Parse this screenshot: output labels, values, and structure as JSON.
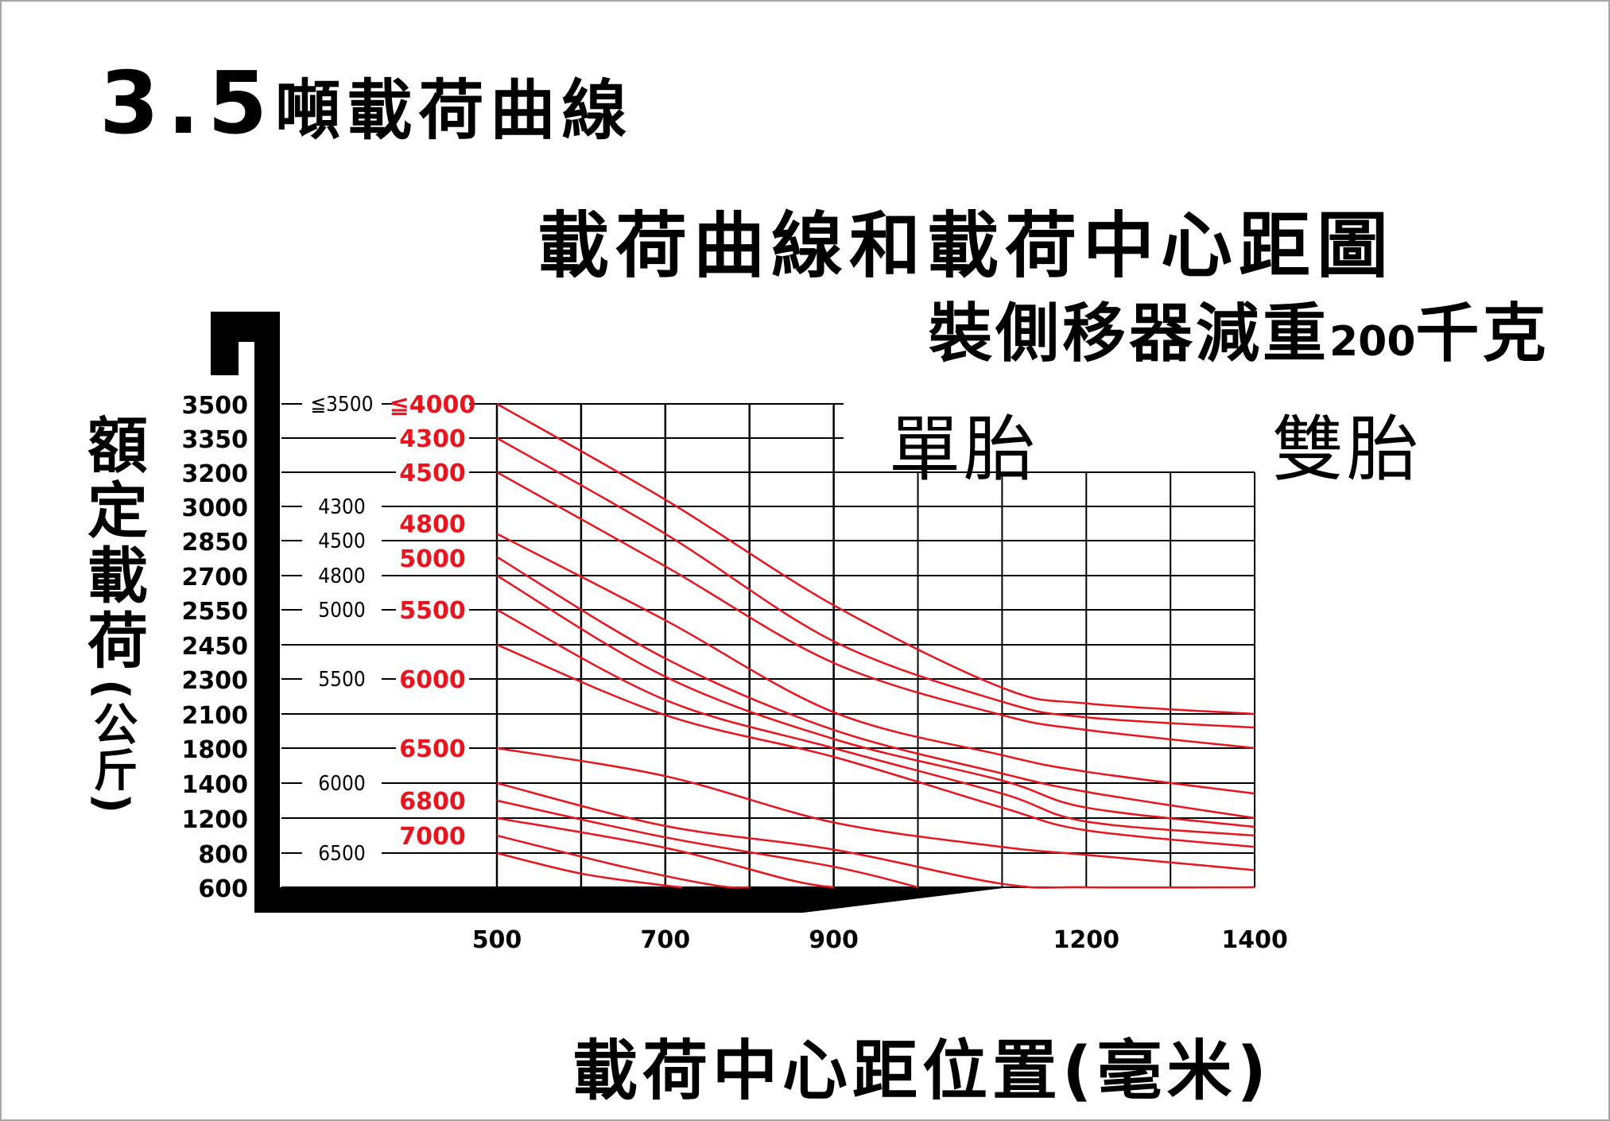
{
  "title": {
    "number": "3.5",
    "text": "噸載荷曲線"
  },
  "subtitle": "載荷曲線和載荷中心距圖",
  "note": {
    "prefix": "裝側移器減重",
    "number": "200",
    "suffix": "千克"
  },
  "tire_labels": {
    "single": "單胎",
    "dual": "雙胎"
  },
  "axis": {
    "ylabel_main": "額定載荷",
    "ylabel_unit": "(公斤)",
    "xlabel": "載荷中心距位置(毫米)"
  },
  "chart_data": {
    "type": "line",
    "title": "載荷曲線和載荷中心距圖",
    "xlabel": "載荷中心距位置(毫米)",
    "ylabel": "額定載荷(公斤)",
    "xlim": [
      500,
      1400
    ],
    "x_ticks": [
      "500",
      "700",
      "900",
      "1200",
      "1400"
    ],
    "y_ticks": [
      "3500",
      "3350",
      "3200",
      "3000",
      "2850",
      "2700",
      "2550",
      "2450",
      "2300",
      "2100",
      "1800",
      "1400",
      "1200",
      "800",
      "600"
    ],
    "single_tire_mast_labels": [
      {
        "label": "≦3500",
        "y_tick": "3500"
      },
      {
        "label": "4300",
        "y_tick": "3000"
      },
      {
        "label": "4500",
        "y_tick": "2850"
      },
      {
        "label": "4800",
        "y_tick": "2700"
      },
      {
        "label": "5000",
        "y_tick": "2550"
      },
      {
        "label": "5500",
        "y_tick": "2300"
      },
      {
        "label": "6000",
        "y_tick": "1400"
      },
      {
        "label": "6500",
        "y_tick": "800"
      }
    ],
    "dual_tire_mast_labels": [
      {
        "label": "≦4000",
        "y_tick": "3500"
      },
      {
        "label": "4300",
        "y_tick": "3350"
      },
      {
        "label": "4500",
        "y_tick": "3200"
      },
      {
        "label": "4800",
        "y_tick": "2925"
      },
      {
        "label": "5000",
        "y_tick": "2775"
      },
      {
        "label": "5500",
        "y_tick": "2550"
      },
      {
        "label": "6000",
        "y_tick": "2300"
      },
      {
        "label": "6500",
        "y_tick": "1800"
      },
      {
        "label": "6800",
        "y_tick": "1300"
      },
      {
        "label": "7000",
        "y_tick": "1000"
      }
    ],
    "series": [
      {
        "values": [
          [
            500,
            3500
          ],
          [
            700,
            3040
          ],
          [
            900,
            2570
          ],
          [
            1100,
            2250
          ],
          [
            1200,
            2160
          ],
          [
            1400,
            2100
          ]
        ]
      },
      {
        "values": [
          [
            500,
            3350
          ],
          [
            700,
            2880
          ],
          [
            900,
            2460
          ],
          [
            1100,
            2170
          ],
          [
            1200,
            2070
          ],
          [
            1400,
            1980
          ]
        ]
      },
      {
        "values": [
          [
            500,
            3200
          ],
          [
            700,
            2740
          ],
          [
            900,
            2370
          ],
          [
            1100,
            2090
          ],
          [
            1200,
            1960
          ],
          [
            1400,
            1800
          ]
        ]
      },
      {
        "values": [
          [
            500,
            2880
          ],
          [
            700,
            2520
          ],
          [
            900,
            2110
          ],
          [
            1100,
            1720
          ],
          [
            1200,
            1530
          ],
          [
            1400,
            1340
          ]
        ]
      },
      {
        "values": [
          [
            500,
            2780
          ],
          [
            700,
            2390
          ],
          [
            900,
            1960
          ],
          [
            1100,
            1510
          ],
          [
            1200,
            1350
          ],
          [
            1400,
            1200
          ]
        ]
      },
      {
        "values": [
          [
            500,
            2700
          ],
          [
            700,
            2310
          ],
          [
            900,
            1880
          ],
          [
            1100,
            1430
          ],
          [
            1200,
            1260
          ],
          [
            1400,
            1100
          ]
        ]
      },
      {
        "values": [
          [
            500,
            2550
          ],
          [
            700,
            2180
          ],
          [
            900,
            1800
          ],
          [
            1100,
            1340
          ],
          [
            1200,
            1160
          ],
          [
            1400,
            1000
          ]
        ]
      },
      {
        "values": [
          [
            500,
            2450
          ],
          [
            700,
            2090
          ],
          [
            900,
            1700
          ],
          [
            1100,
            1260
          ],
          [
            1200,
            1060
          ],
          [
            1400,
            870
          ]
        ]
      },
      {
        "values": [
          [
            500,
            1800
          ],
          [
            700,
            1480
          ],
          [
            900,
            1150
          ],
          [
            1100,
            870
          ],
          [
            1200,
            790
          ],
          [
            1400,
            700
          ]
        ]
      },
      {
        "values": [
          [
            500,
            1400
          ],
          [
            700,
            1110
          ],
          [
            900,
            840
          ],
          [
            1100,
            620
          ],
          [
            1200,
            600
          ],
          [
            1400,
            600
          ]
        ]
      },
      {
        "values": [
          [
            500,
            1300
          ],
          [
            700,
            980
          ],
          [
            900,
            720
          ],
          [
            1000,
            600
          ]
        ]
      },
      {
        "values": [
          [
            500,
            1200
          ],
          [
            700,
            860
          ],
          [
            850,
            640
          ],
          [
            900,
            600
          ]
        ]
      },
      {
        "values": [
          [
            500,
            1000
          ],
          [
            650,
            720
          ],
          [
            760,
            610
          ],
          [
            800,
            600
          ]
        ]
      },
      {
        "values": [
          [
            500,
            800
          ],
          [
            600,
            680
          ],
          [
            700,
            610
          ],
          [
            720,
            600
          ]
        ]
      }
    ],
    "colors": {
      "curve": "#e8141e",
      "dual_label": "#e8141e",
      "grid": "#000000",
      "axis_bar": "#000000"
    },
    "grid": true
  }
}
